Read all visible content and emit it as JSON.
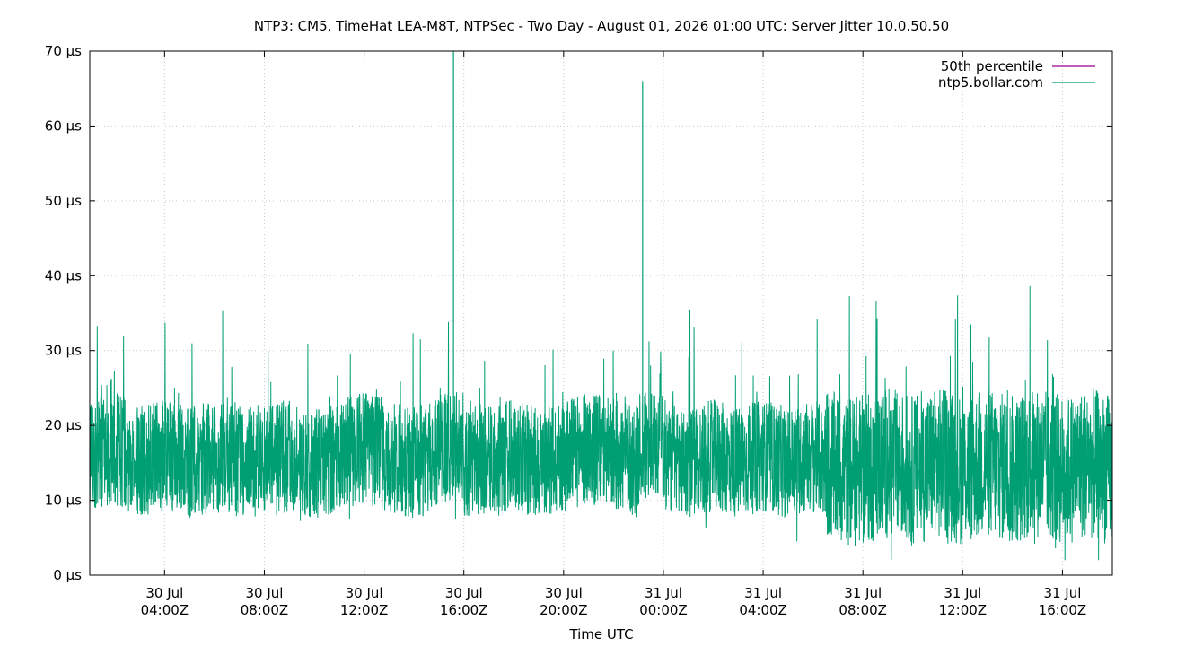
{
  "chart_data": {
    "type": "line",
    "title": "NTP3: CM5, TimeHat LEA-M8T, NTPSec - Two Day - August 01, 2026 01:00 UTC: Server Jitter 10.0.50.50",
    "xlabel": "Time UTC",
    "ylabel": "",
    "ylim": [
      0,
      70
    ],
    "y_unit": "µs",
    "y_ticks": [
      {
        "value": 0,
        "label": "0 µs"
      },
      {
        "value": 10,
        "label": "10 µs"
      },
      {
        "value": 20,
        "label": "20 µs"
      },
      {
        "value": 30,
        "label": "30 µs"
      },
      {
        "value": 40,
        "label": "40 µs"
      },
      {
        "value": 50,
        "label": "50 µs"
      },
      {
        "value": 60,
        "label": "60 µs"
      },
      {
        "value": 70,
        "label": "70 µs"
      }
    ],
    "xlim": [
      "2026-07-30T01:00Z",
      "2026-07-31T18:00Z"
    ],
    "x_ticks": [
      {
        "value": "2026-07-30T04:00Z",
        "line1": "30 Jul",
        "line2": "04:00Z"
      },
      {
        "value": "2026-07-30T08:00Z",
        "line1": "30 Jul",
        "line2": "08:00Z"
      },
      {
        "value": "2026-07-30T12:00Z",
        "line1": "30 Jul",
        "line2": "12:00Z"
      },
      {
        "value": "2026-07-30T16:00Z",
        "line1": "30 Jul",
        "line2": "16:00Z"
      },
      {
        "value": "2026-07-30T20:00Z",
        "line1": "30 Jul",
        "line2": "20:00Z"
      },
      {
        "value": "2026-07-31T00:00Z",
        "line1": "31 Jul",
        "line2": "00:00Z"
      },
      {
        "value": "2026-07-31T04:00Z",
        "line1": "31 Jul",
        "line2": "04:00Z"
      },
      {
        "value": "2026-07-31T08:00Z",
        "line1": "31 Jul",
        "line2": "08:00Z"
      },
      {
        "value": "2026-07-31T12:00Z",
        "line1": "31 Jul",
        "line2": "12:00Z"
      },
      {
        "value": "2026-07-31T16:00Z",
        "line1": "31 Jul",
        "line2": "16:00Z"
      }
    ],
    "grid": true,
    "legend_position": "top-right",
    "series": [
      {
        "name": "50th percentile",
        "color": "#940094",
        "points": []
      },
      {
        "name": "ntp5.bollar.com",
        "color": "#009e73",
        "typical_range": [
          5,
          30
        ],
        "points": [
          {
            "x": "2026-07-30T01:00Z",
            "y": 16
          },
          {
            "x": "2026-07-30T02:00Z",
            "y": 17
          },
          {
            "x": "2026-07-30T03:00Z",
            "y": 15
          },
          {
            "x": "2026-07-30T04:00Z",
            "y": 16
          },
          {
            "x": "2026-07-30T05:00Z",
            "y": 15
          },
          {
            "x": "2026-07-30T06:00Z",
            "y": 16
          },
          {
            "x": "2026-07-30T07:00Z",
            "y": 15
          },
          {
            "x": "2026-07-30T08:00Z",
            "y": 15
          },
          {
            "x": "2026-07-30T09:00Z",
            "y": 16
          },
          {
            "x": "2026-07-30T10:00Z",
            "y": 15
          },
          {
            "x": "2026-07-30T11:00Z",
            "y": 16
          },
          {
            "x": "2026-07-30T12:00Z",
            "y": 17
          },
          {
            "x": "2026-07-30T13:00Z",
            "y": 16
          },
          {
            "x": "2026-07-30T14:00Z",
            "y": 15
          },
          {
            "x": "2026-07-30T15:00Z",
            "y": 16
          },
          {
            "x": "2026-07-30T15:35Z",
            "y": 70
          },
          {
            "x": "2026-07-30T16:00Z",
            "y": 15
          },
          {
            "x": "2026-07-30T17:00Z",
            "y": 15
          },
          {
            "x": "2026-07-30T18:00Z",
            "y": 16
          },
          {
            "x": "2026-07-30T19:00Z",
            "y": 15
          },
          {
            "x": "2026-07-30T20:00Z",
            "y": 16
          },
          {
            "x": "2026-07-30T21:00Z",
            "y": 17
          },
          {
            "x": "2026-07-30T22:00Z",
            "y": 16
          },
          {
            "x": "2026-07-30T23:00Z",
            "y": 15
          },
          {
            "x": "2026-07-30T23:10Z",
            "y": 66
          },
          {
            "x": "2026-07-31T00:00Z",
            "y": 16
          },
          {
            "x": "2026-07-31T01:00Z",
            "y": 15
          },
          {
            "x": "2026-07-31T02:00Z",
            "y": 16
          },
          {
            "x": "2026-07-31T03:00Z",
            "y": 15
          },
          {
            "x": "2026-07-31T04:00Z",
            "y": 16
          },
          {
            "x": "2026-07-31T05:00Z",
            "y": 15
          },
          {
            "x": "2026-07-31T06:00Z",
            "y": 16
          },
          {
            "x": "2026-07-31T07:00Z",
            "y": 14
          },
          {
            "x": "2026-07-31T08:00Z",
            "y": 14
          },
          {
            "x": "2026-07-31T09:00Z",
            "y": 15
          },
          {
            "x": "2026-07-31T10:00Z",
            "y": 14
          },
          {
            "x": "2026-07-31T11:00Z",
            "y": 15
          },
          {
            "x": "2026-07-31T12:00Z",
            "y": 14
          },
          {
            "x": "2026-07-31T13:00Z",
            "y": 15
          },
          {
            "x": "2026-07-31T14:00Z",
            "y": 14
          },
          {
            "x": "2026-07-31T15:00Z",
            "y": 15
          },
          {
            "x": "2026-07-31T16:00Z",
            "y": 14
          },
          {
            "x": "2026-07-31T17:00Z",
            "y": 15
          },
          {
            "x": "2026-07-31T18:00Z",
            "y": 14
          }
        ]
      }
    ]
  }
}
